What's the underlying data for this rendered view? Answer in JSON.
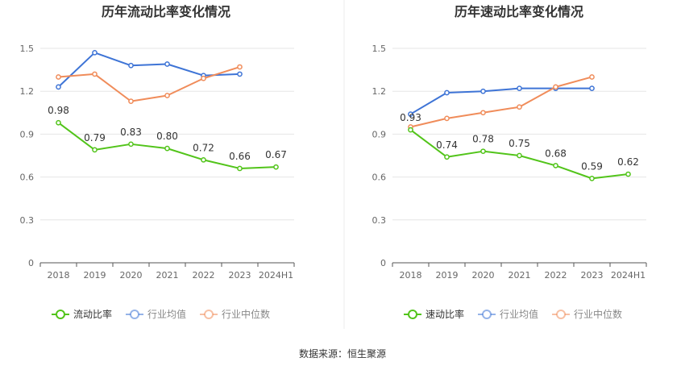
{
  "source_note": "数据来源：恒生聚源",
  "chart_data": [
    {
      "type": "line",
      "title": "历年流动比率变化情况",
      "categories": [
        "2018",
        "2019",
        "2020",
        "2021",
        "2022",
        "2023",
        "2024H1"
      ],
      "ylim": [
        0,
        1.5
      ],
      "yticks": [
        "0",
        "0.3",
        "0.6",
        "0.9",
        "1.2",
        "1.5"
      ],
      "grid": true,
      "legend_position": "bottom",
      "series": [
        {
          "name": "流动比率",
          "color": "#52c41a",
          "labeled": true,
          "values": [
            0.98,
            0.79,
            0.83,
            0.8,
            0.72,
            0.66,
            0.67
          ],
          "labels": [
            "0.98",
            "0.79",
            "0.83",
            "0.80",
            "0.72",
            "0.66",
            "0.67"
          ]
        },
        {
          "name": "行业均值",
          "color": "#3e74d6",
          "labeled": false,
          "values": [
            1.23,
            1.47,
            1.38,
            1.39,
            1.31,
            1.32,
            null
          ]
        },
        {
          "name": "行业中位数",
          "color": "#f08c5a",
          "labeled": false,
          "values": [
            1.3,
            1.32,
            1.13,
            1.17,
            1.29,
            1.37,
            null
          ]
        }
      ]
    },
    {
      "type": "line",
      "title": "历年速动比率变化情况",
      "categories": [
        "2018",
        "2019",
        "2020",
        "2021",
        "2022",
        "2023",
        "2024H1"
      ],
      "ylim": [
        0,
        1.5
      ],
      "yticks": [
        "0",
        "0.3",
        "0.6",
        "0.9",
        "1.2",
        "1.5"
      ],
      "grid": true,
      "legend_position": "bottom",
      "series": [
        {
          "name": "速动比率",
          "color": "#52c41a",
          "labeled": true,
          "values": [
            0.93,
            0.74,
            0.78,
            0.75,
            0.68,
            0.59,
            0.62
          ],
          "labels": [
            "0.93",
            "0.74",
            "0.78",
            "0.75",
            "0.68",
            "0.59",
            "0.62"
          ]
        },
        {
          "name": "行业均值",
          "color": "#3e74d6",
          "labeled": false,
          "values": [
            1.04,
            1.19,
            1.2,
            1.22,
            1.22,
            1.22,
            null
          ]
        },
        {
          "name": "行业中位数",
          "color": "#f08c5a",
          "labeled": false,
          "values": [
            0.95,
            1.01,
            1.05,
            1.09,
            1.23,
            1.3,
            null
          ]
        }
      ]
    }
  ]
}
